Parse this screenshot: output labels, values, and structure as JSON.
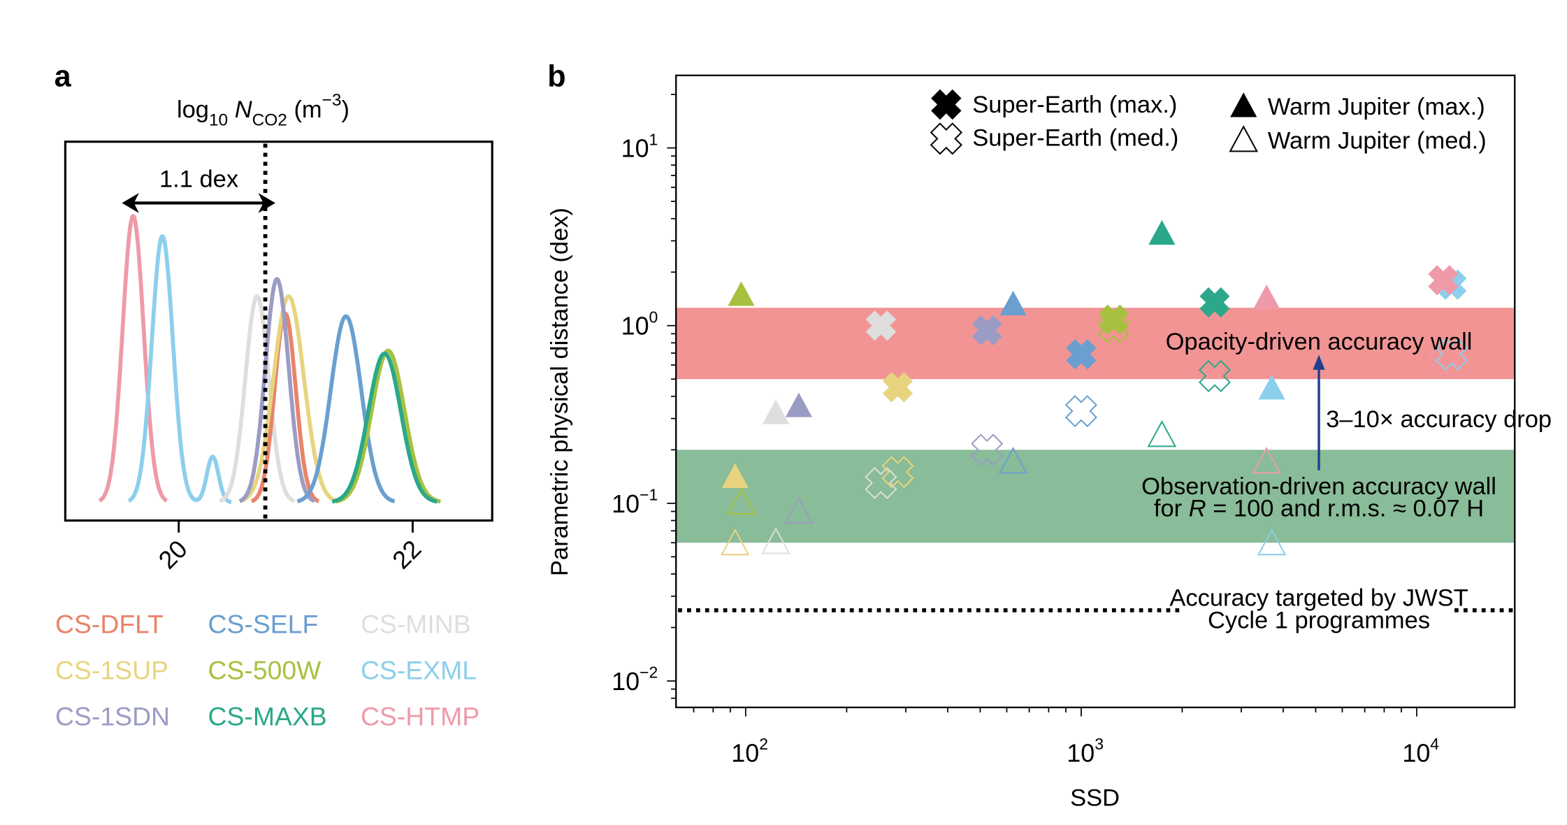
{
  "colors": {
    "CS-DFLT": "#e8836a",
    "CS-SELF": "#6a9fd0",
    "CS-MINB": "#dedede",
    "CS-1SUP": "#e8d47f",
    "CS-500W": "#a6c13f",
    "CS-EXML": "#8ccfec",
    "CS-1SDN": "#9b9cc4",
    "CS-MAXB": "#2aa889",
    "CS-HTMP": "#ee9aa8"
  },
  "chart_data": [
    {
      "panel": "a",
      "type": "line",
      "title": {
        "log": "log",
        "sub10": "10",
        "N": "N",
        "subCO2": "CO2",
        "unit_open": " (m",
        "exp": "−3",
        "unit_close": ")"
      },
      "xlim": [
        19.03,
        22.68
      ],
      "xticks": [
        "20",
        "22"
      ],
      "xtick_values": [
        20,
        22
      ],
      "reference_line": 20.74,
      "annotation": "1.1 dex",
      "annotation_span": [
        19.6,
        20.74
      ],
      "series": [
        {
          "name": "CS-HTMP",
          "peaks": [
            {
              "center": 19.61,
              "amp": 1.0,
              "sigma": 0.09
            }
          ]
        },
        {
          "name": "CS-EXML",
          "peaks": [
            {
              "center": 19.86,
              "amp": 0.93,
              "sigma": 0.09
            },
            {
              "center": 20.29,
              "amp": 0.16,
              "sigma": 0.05
            }
          ]
        },
        {
          "name": "CS-MINB",
          "peaks": [
            {
              "center": 20.67,
              "amp": 0.72,
              "sigma": 0.1
            }
          ]
        },
        {
          "name": "CS-DFLT",
          "peaks": [
            {
              "center": 20.91,
              "amp": 0.66,
              "sigma": 0.09
            }
          ]
        },
        {
          "name": "CS-1SUP",
          "peaks": [
            {
              "center": 20.94,
              "amp": 0.72,
              "sigma": 0.13
            }
          ]
        },
        {
          "name": "CS-1SDN",
          "peaks": [
            {
              "center": 20.84,
              "amp": 0.78,
              "sigma": 0.1
            }
          ]
        },
        {
          "name": "CS-SELF",
          "peaks": [
            {
              "center": 21.43,
              "amp": 0.65,
              "sigma": 0.13
            }
          ]
        },
        {
          "name": "CS-500W",
          "peaks": [
            {
              "center": 21.79,
              "amp": 0.53,
              "sigma": 0.14
            }
          ]
        },
        {
          "name": "CS-MAXB",
          "peaks": [
            {
              "center": 21.76,
              "amp": 0.52,
              "sigma": 0.14
            }
          ]
        }
      ],
      "legend": [
        "CS-DFLT",
        "CS-SELF",
        "CS-MINB",
        "CS-1SUP",
        "CS-500W",
        "CS-EXML",
        "CS-1SDN",
        "CS-MAXB",
        "CS-HTMP"
      ]
    },
    {
      "panel": "b",
      "type": "scatter",
      "xlabel": "SSD",
      "ylabel": "Parametric physical distance (dex)",
      "xscale": "log",
      "yscale": "log",
      "xlim": [
        62,
        19600
      ],
      "ylim": [
        0.0071,
        25.6
      ],
      "xticks": [
        {
          "base": "10",
          "exp": "2",
          "value": 100
        },
        {
          "base": "10",
          "exp": "3",
          "value": 1000
        },
        {
          "base": "10",
          "exp": "4",
          "value": 10000
        }
      ],
      "yticks": [
        {
          "base": "10",
          "exp": "1",
          "value": 10
        },
        {
          "base": "10",
          "exp": "0",
          "value": 1
        },
        {
          "base": "10",
          "exp": "−1",
          "value": 0.1
        },
        {
          "base": "10",
          "exp": "−2",
          "value": 0.01
        }
      ],
      "bands": [
        {
          "name": "Opacity-driven accuracy wall",
          "range": [
            0.5,
            1.26
          ],
          "color": "#f29494"
        },
        {
          "name": "Observation-driven accuracy wall",
          "range": [
            0.06,
            0.2
          ],
          "color": "#89bc98"
        }
      ],
      "jwst_line": 0.025,
      "annotations": {
        "opacity_wall": "Opacity-driven accuracy wall",
        "drop": "3–10× accuracy drop",
        "obs_wall_1": "Observation-driven accuracy wall",
        "obs_wall_2_pre": "for ",
        "obs_wall_2_R": "R",
        "obs_wall_2_post": " = 100 and r.m.s. ≈ 0.07 H",
        "jwst_1": "Accuracy targeted by JWST",
        "jwst_2": "Cycle 1 programmes"
      },
      "legend": {
        "se_max": "Super-Earth (max.)",
        "se_med": "Super-Earth (med.)",
        "wj_max": "Warm Jupiter (max.)",
        "wj_med": "Warm Jupiter (med.)"
      },
      "series": [
        {
          "name": "Super-Earth (max.)",
          "marker": "x-filled",
          "points": [
            {
              "model": "CS-MINB",
              "x": 253,
              "y": 1.0
            },
            {
              "model": "CS-1SUP",
              "x": 284,
              "y": 0.45
            },
            {
              "model": "CS-1SDN",
              "x": 524,
              "y": 0.94
            },
            {
              "model": "CS-SELF",
              "x": 1000,
              "y": 0.69
            },
            {
              "model": "CS-500W",
              "x": 1250,
              "y": 1.08
            },
            {
              "model": "CS-MAXB",
              "x": 2500,
              "y": 1.35
            },
            {
              "model": "CS-EXML",
              "x": 12700,
              "y": 1.7
            },
            {
              "model": "CS-HTMP",
              "x": 12000,
              "y": 1.8
            }
          ]
        },
        {
          "name": "Super-Earth (med.)",
          "marker": "x-open",
          "points": [
            {
              "model": "CS-MINB",
              "x": 253,
              "y": 0.13
            },
            {
              "model": "CS-1SUP",
              "x": 284,
              "y": 0.15
            },
            {
              "model": "CS-1SDN",
              "x": 524,
              "y": 0.2
            },
            {
              "model": "CS-SELF",
              "x": 1000,
              "y": 0.33
            },
            {
              "model": "CS-500W",
              "x": 1250,
              "y": 0.98
            },
            {
              "model": "CS-MAXB",
              "x": 2500,
              "y": 0.52
            },
            {
              "model": "CS-HTMP",
              "x": 12100,
              "y": 0.62
            },
            {
              "model": "CS-EXML",
              "x": 12700,
              "y": 0.69
            }
          ]
        },
        {
          "name": "Warm Jupiter (max.)",
          "marker": "triangle-filled",
          "points": [
            {
              "model": "CS-500W",
              "x": 97,
              "y": 1.48
            },
            {
              "model": "CS-1SUP",
              "x": 93,
              "y": 0.14
            },
            {
              "model": "CS-MINB",
              "x": 123,
              "y": 0.32
            },
            {
              "model": "CS-1SDN",
              "x": 144,
              "y": 0.35
            },
            {
              "model": "CS-SELF",
              "x": 627,
              "y": 1.31
            },
            {
              "model": "CS-MAXB",
              "x": 1740,
              "y": 3.27
            },
            {
              "model": "CS-HTMP",
              "x": 3570,
              "y": 1.42
            },
            {
              "model": "CS-EXML",
              "x": 3700,
              "y": 0.44
            }
          ]
        },
        {
          "name": "Warm Jupiter (med.)",
          "marker": "triangle-open",
          "points": [
            {
              "model": "CS-500W",
              "x": 97,
              "y": 0.1
            },
            {
              "model": "CS-1SUP",
              "x": 93,
              "y": 0.059
            },
            {
              "model": "CS-MINB",
              "x": 123,
              "y": 0.06
            },
            {
              "model": "CS-1SDN",
              "x": 144,
              "y": 0.089
            },
            {
              "model": "CS-SELF",
              "x": 627,
              "y": 0.17
            },
            {
              "model": "CS-MAXB",
              "x": 1740,
              "y": 0.24
            },
            {
              "model": "CS-HTMP",
              "x": 3570,
              "y": 0.17
            },
            {
              "model": "CS-EXML",
              "x": 3700,
              "y": 0.059
            }
          ]
        }
      ]
    }
  ],
  "panels": {
    "a": "a",
    "b": "b"
  }
}
